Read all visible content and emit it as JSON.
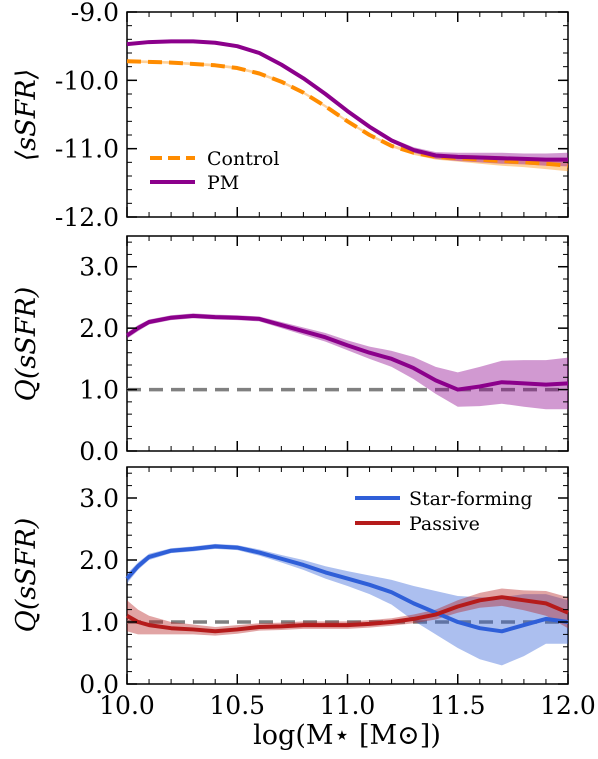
{
  "chart_data": [
    {
      "type": "line",
      "panel": "top",
      "ylabel": "⟨sSFR⟩",
      "xlim": [
        10.0,
        12.0
      ],
      "ylim": [
        -12.0,
        -9.0
      ],
      "yticks": [
        -12.0,
        -11.0,
        -10.0,
        -9.0
      ],
      "ytick_labels": [
        "-12.0",
        "-11.0",
        "-10.0",
        "-9.0"
      ],
      "legend_position": "lower-left",
      "series": [
        {
          "name": "Control",
          "color": "#ff8c00",
          "style": "dashed",
          "x": [
            10.0,
            10.2,
            10.4,
            10.5,
            10.6,
            10.7,
            10.8,
            10.9,
            11.0,
            11.1,
            11.2,
            11.3,
            11.4,
            11.5,
            11.6,
            11.7,
            11.8,
            11.9,
            12.0
          ],
          "y": [
            -9.72,
            -9.74,
            -9.78,
            -9.82,
            -9.9,
            -10.02,
            -10.18,
            -10.38,
            -10.6,
            -10.8,
            -10.96,
            -11.06,
            -11.12,
            -11.14,
            -11.16,
            -11.18,
            -11.2,
            -11.22,
            -11.25
          ],
          "band": [
            0.02,
            0.02,
            0.02,
            0.02,
            0.02,
            0.02,
            0.02,
            0.02,
            0.02,
            0.02,
            0.02,
            0.03,
            0.04,
            0.05,
            0.06,
            0.07,
            0.07,
            0.08,
            0.08
          ]
        },
        {
          "name": "PM",
          "color": "#8b008b",
          "style": "solid",
          "x": [
            10.0,
            10.1,
            10.2,
            10.3,
            10.4,
            10.5,
            10.6,
            10.7,
            10.8,
            10.9,
            11.0,
            11.1,
            11.2,
            11.3,
            11.4,
            11.5,
            11.6,
            11.7,
            11.8,
            11.9,
            12.0
          ],
          "y": [
            -9.47,
            -9.44,
            -9.43,
            -9.43,
            -9.45,
            -9.5,
            -9.6,
            -9.77,
            -9.97,
            -10.2,
            -10.45,
            -10.68,
            -10.88,
            -11.02,
            -11.1,
            -11.12,
            -11.13,
            -11.14,
            -11.15,
            -11.16,
            -11.16
          ],
          "band": [
            0.02,
            0.02,
            0.02,
            0.02,
            0.02,
            0.02,
            0.02,
            0.02,
            0.02,
            0.02,
            0.02,
            0.02,
            0.03,
            0.04,
            0.05,
            0.06,
            0.07,
            0.08,
            0.08,
            0.09,
            0.1
          ]
        }
      ]
    },
    {
      "type": "line",
      "panel": "middle",
      "ylabel": "Q(sSFR)",
      "xlim": [
        10.0,
        12.0
      ],
      "ylim": [
        0.0,
        3.5
      ],
      "yticks": [
        0.0,
        1.0,
        2.0,
        3.0
      ],
      "ytick_labels": [
        "0.0",
        "1.0",
        "2.0",
        "3.0"
      ],
      "reference_line": 1.0,
      "series": [
        {
          "name": "PM",
          "color": "#8b008b",
          "style": "solid",
          "x": [
            10.0,
            10.05,
            10.1,
            10.2,
            10.3,
            10.4,
            10.5,
            10.6,
            10.7,
            10.8,
            10.9,
            11.0,
            11.1,
            11.2,
            11.3,
            11.4,
            11.5,
            11.6,
            11.7,
            11.8,
            11.9,
            12.0
          ],
          "y": [
            1.88,
            2.0,
            2.1,
            2.17,
            2.2,
            2.18,
            2.17,
            2.15,
            2.05,
            1.95,
            1.85,
            1.72,
            1.6,
            1.5,
            1.35,
            1.15,
            1.0,
            1.05,
            1.12,
            1.1,
            1.08,
            1.1
          ],
          "band": [
            0.05,
            0.05,
            0.04,
            0.04,
            0.04,
            0.04,
            0.04,
            0.04,
            0.05,
            0.06,
            0.07,
            0.08,
            0.1,
            0.13,
            0.18,
            0.22,
            0.28,
            0.32,
            0.35,
            0.38,
            0.4,
            0.42
          ]
        }
      ]
    },
    {
      "type": "line",
      "panel": "bottom",
      "ylabel": "Q(sSFR)",
      "xlabel": "log(M⋆ [M⊙])",
      "xlim": [
        10.0,
        12.0
      ],
      "xticks": [
        10.0,
        10.5,
        11.0,
        11.5,
        12.0
      ],
      "xtick_labels": [
        "10.0",
        "10.5",
        "11.0",
        "11.5",
        "12.0"
      ],
      "ylim": [
        0.0,
        3.5
      ],
      "yticks": [
        0.0,
        1.0,
        2.0,
        3.0
      ],
      "ytick_labels": [
        "0.0",
        "1.0",
        "2.0",
        "3.0"
      ],
      "reference_line": 1.0,
      "legend_position": "top-right",
      "series": [
        {
          "name": "Star-forming",
          "color": "#2f5fd8",
          "style": "solid",
          "x": [
            10.0,
            10.05,
            10.1,
            10.2,
            10.3,
            10.4,
            10.5,
            10.6,
            10.7,
            10.8,
            10.9,
            11.0,
            11.1,
            11.2,
            11.3,
            11.4,
            11.5,
            11.6,
            11.7,
            11.8,
            11.9,
            12.0
          ],
          "y": [
            1.7,
            1.9,
            2.05,
            2.15,
            2.18,
            2.22,
            2.2,
            2.12,
            2.02,
            1.92,
            1.8,
            1.7,
            1.6,
            1.48,
            1.3,
            1.15,
            1.0,
            0.9,
            0.85,
            0.95,
            1.05,
            1.0
          ],
          "band": [
            0.08,
            0.06,
            0.05,
            0.04,
            0.04,
            0.04,
            0.04,
            0.05,
            0.06,
            0.08,
            0.1,
            0.12,
            0.15,
            0.2,
            0.28,
            0.35,
            0.42,
            0.5,
            0.55,
            0.5,
            0.4,
            0.35
          ]
        },
        {
          "name": "Passive",
          "color": "#b51b1b",
          "style": "solid",
          "x": [
            10.0,
            10.05,
            10.1,
            10.2,
            10.3,
            10.4,
            10.5,
            10.6,
            10.7,
            10.8,
            10.9,
            11.0,
            11.1,
            11.2,
            11.3,
            11.4,
            11.5,
            11.6,
            11.7,
            11.8,
            11.9,
            12.0
          ],
          "y": [
            1.1,
            1.0,
            0.95,
            0.9,
            0.88,
            0.85,
            0.88,
            0.92,
            0.93,
            0.95,
            0.95,
            0.95,
            0.97,
            1.0,
            1.05,
            1.12,
            1.25,
            1.35,
            1.4,
            1.35,
            1.3,
            1.15
          ],
          "band": [
            0.25,
            0.2,
            0.15,
            0.1,
            0.08,
            0.07,
            0.07,
            0.06,
            0.06,
            0.06,
            0.06,
            0.06,
            0.06,
            0.06,
            0.07,
            0.08,
            0.1,
            0.12,
            0.14,
            0.16,
            0.2,
            0.25
          ]
        }
      ]
    }
  ],
  "legend_top": {
    "control": "Control",
    "pm": "PM"
  },
  "legend_bottom": {
    "star_forming": "Star-forming",
    "passive": "Passive"
  },
  "colors": {
    "control": "#ff8c00",
    "pm": "#8b008b",
    "star_forming": "#2f5fd8",
    "passive": "#b51b1b",
    "reference": "#808080"
  }
}
